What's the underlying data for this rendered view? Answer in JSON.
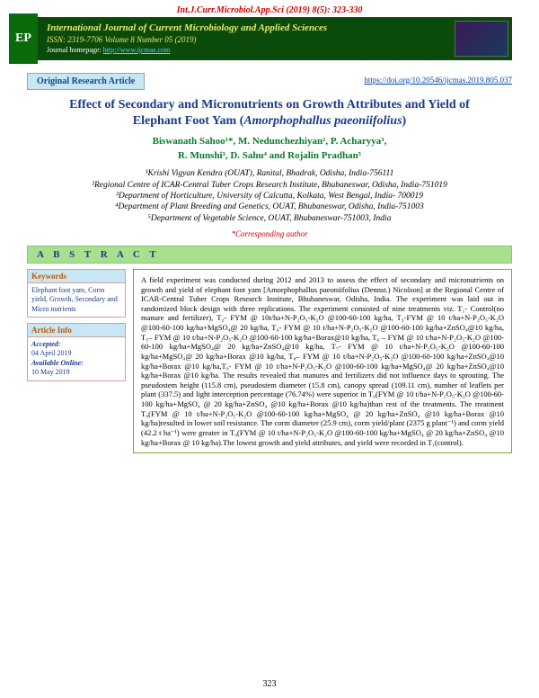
{
  "header": {
    "citation": "Int.J.Curr.Microbiol.App.Sci (2019) 8(5): 323-330",
    "journal_title": "International Journal of Current Microbiology and Applied Sciences",
    "issn_line": "ISSN: 2319-7706 Volume 8 Number 05 (2019)",
    "homepage_label": "Journal homepage: ",
    "homepage_url": "http://www.ijcmas.com",
    "logo_text": "EP"
  },
  "article_bar": {
    "type": "Original Research Article",
    "doi": "https://doi.org/10.20546/ijcmas.2019.805.037"
  },
  "title": {
    "line1": "Effect of Secondary and Micronutrients on Growth Attributes and Yield of",
    "line2_prefix": "Elephant Foot Yam (",
    "line2_species": "Amorphophallus paeoniifolius",
    "line2_suffix": ")"
  },
  "authors": {
    "line1": "Biswanath Sahoo¹*, M. Nedunchezhiyan², P. Acharyya³,",
    "line2": "R. Munshi³, D. Sahu⁴ and Rojalin Pradhan⁵"
  },
  "affiliations": {
    "a1": "¹Krishi Vigyan Kendra (OUAT), Ranital, Bhadrak, Odisha, India-756111",
    "a2": "²Regional Centre of ICAR-Central Tuber Crops Research Institute, Bhubaneswar, Odisha, India-751019",
    "a3": "³Department of Horticulture, University of Calcutta, Kolkata, West Bengal, India- 700019",
    "a4": "⁴Department of Plant Breeding and Genetics, OUAT, Bhubaneswar, Odisha, India-751003",
    "a5": "⁵Department of Vegetable Science, OUAT, Bhubaneswar-751003, India"
  },
  "corresponding": "*Corresponding author",
  "abstract_header": "A B S T R A C T",
  "sidebar": {
    "keywords_header": "Keywords",
    "keywords_body": "Elephant foot yam, Corm yield, Growth, Secondary and Micro nutrients",
    "article_info_header": "Article Info",
    "accepted_label": "Accepted:",
    "accepted_value": "04 April 2019",
    "available_label": "Available Online:",
    "available_value": "10 May 2019"
  },
  "abstract": "A field experiment was conducted during 2012 and 2013 to assess the effect of secondary and micronutrients on growth and yield of elephant foot yam [Amorphophallus paeoniifolius (Dennst.) Nicolson] at the Regional Centre of ICAR-Central Tuber Crops Research Institute, Bhubaneswar, Odisha, India. The experiment was laid out in randomized block design with three replications. The experiment consisted of nine treatments viz. T₁- Control(no manure and fertilizer), T₂- FYM @ 10t/ha+N-P₂O₅-K₂O @100-60-100 kg/ha, T₃-FYM @ 10 t/ha+N-P₂O₅-K₂O @100-60-100 kg/ha+MgSO₄@ 20 kg/ha, T₄- FYM @ 10 t/ha+N-P₂O₅-K₂O @100-60-100 kg/ha+ZnSO₄@10 kg/ha, T₅– FYM @ 10 t/ha+N-P₂O₅-K₂O @100-60-100 kg/ha+Borax@10 kg/ha, T₆ – FYM @ 10 t/ha+N-P₂O₅-K₂O @100-60-100 kg/ha+MgSO₄@ 20 kg/ha+ZnSO₄@10 kg/ha, T₇- FYM @ 10 t/ha+N-P₂O₅-K₂O @100-60-100 kg/ha+MgSO₄@ 20 kg/ha+Borax @10 kg/ha, T₈– FYM @ 10 t/ha+N-P₂O₅-K₂O @100-60-100 kg/ha+ZnSO₄@10 kg/ha+Borax @10 kg/ha,T₉- FYM @ 10 t/ha+N-P₂O₅-K₂O @100-60-100 kg/ha+MgSO₄@ 20 kg/ha+ZnSO₄@10 kg/ha+Borax @10 kg/ha. The results revealed that manures and fertilizers did not influence days to sprouting. The pseudostem height (115.8 cm), pseudostem diameter (15.8 cm), canopy spread (109.11 cm), number of leaflets per plant (337.5) and light interception percentage (76.74%) were superior in T₉(FYM @ 10 t/ha+N-P₂O₅-K₂O @100-60-100 kg/ha+MgSO₄ @ 20 kg/ha+ZnSO₄ @10 kg/ha+Borax @10 kg/ha)than rest of the treatments. The treatment T₉(FYM @ 10 t/ha+N-P₂O₅-K₂O @100-60-100 kg/ha+MgSO₄ @ 20 kg/ha+ZnSO₄ @10 kg/ha+Borax @10 kg/ha)resulted in lower soil resistance. The corm diameter (25.9 cm), corm yield/plant (2375 g plant⁻¹) and corm yield (42.2 t ha⁻¹) were greater in T₉(FYM @ 10 t/ha+N-P₂O₅-K₂O @100-60-100 kg/ha+MgSO₄ @ 20 kg/ha+ZnSO₄ @10 kg/ha+Borax @ 10 kg/ha).The lowest growth and yield attributes, and yield were recorded in T₁(control).",
  "page_number": "323",
  "colors": {
    "banner_bg": "#0a4a0a",
    "banner_text": "#e8e86a",
    "title_color": "#1a3a8a",
    "author_color": "#0a7a2a",
    "red": "#c00",
    "blue_box": "#c9e6f5",
    "green_box": "#a8e090"
  }
}
